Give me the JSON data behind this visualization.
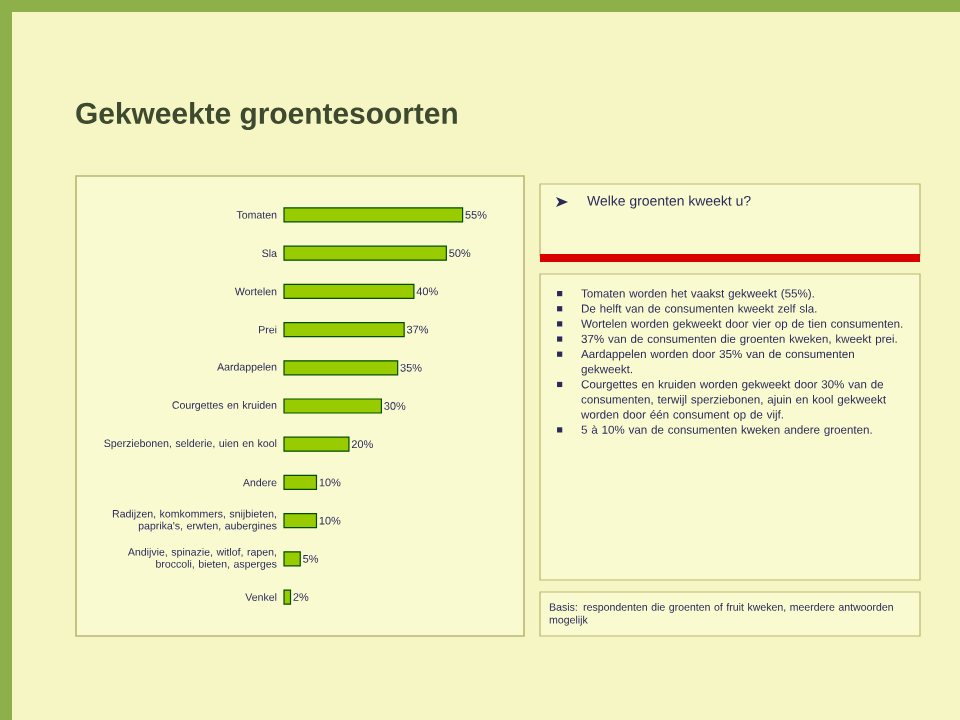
{
  "chart_data": {
    "type": "bar",
    "orientation": "horizontal",
    "title": "Gekweekte groentesoorten",
    "categories": [
      "Tomaten",
      "Sla",
      "Wortelen",
      "Prei",
      "Aardappelen",
      "Courgettes en kruiden",
      "Sperziebonen, selderie, uien en kool",
      "Andere",
      "Radijzen, komkommers, snijbieten, paprika's, erwten, aubergines",
      "Andijvie, spinazie, witlof, rapen, broccoli, bieten, asperges",
      "Venkel"
    ],
    "values": [
      55,
      50,
      40,
      37,
      35,
      30,
      20,
      10,
      10,
      5,
      2
    ],
    "value_labels": [
      "55%",
      "50%",
      "40%",
      "37%",
      "35%",
      "30%",
      "20%",
      "10%",
      "10%",
      "5%",
      "2%"
    ],
    "color": "#99cc00",
    "annotations": [
      "Welke groenten kweekt u?",
      "Tomaten worden het vaakst gekweekt (55%).",
      "De helft van de consumenten kweekt zelf sla.",
      "Wortelen worden gekweekt door vier op de tien consumenten.",
      "37% van de consumenten die groenten kweken, kweekt prei.",
      "Aardappelen worden door 35% van de consumenten gekweekt.",
      "Courgettes en kruiden worden gekweekt door 30% van de consumenten, terwijl sperziebonen, ajuin en kool gekweekt worden door één consument op de vijf.",
      "5 à 10% van de consumenten kweken andere groenten.",
      "Basis: respondenten die groenten of fruit kweken, meerdere antwoorden mogelijk"
    ]
  }
}
